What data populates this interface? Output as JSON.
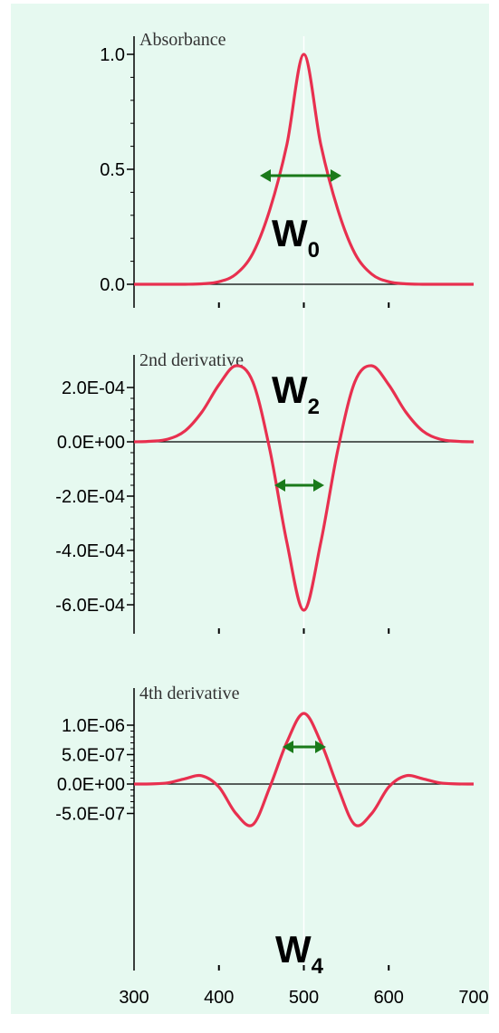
{
  "colors": {
    "background": "#e6f9f0",
    "curve": "#e8304f",
    "arrow": "#1a7a1a",
    "axis": "#000000",
    "center_line": "#ffffff"
  },
  "x_axis": {
    "ticks": [
      300,
      400,
      500,
      600,
      700
    ],
    "tick_labels": [
      "300",
      "400",
      "500",
      "600",
      "700"
    ]
  },
  "chart_data": [
    {
      "type": "line",
      "title": "Absorbance",
      "x": [
        300,
        320,
        340,
        360,
        380,
        400,
        420,
        440,
        460,
        480,
        500,
        520,
        540,
        560,
        580,
        600,
        620,
        640,
        660,
        680,
        700
      ],
      "values": [
        0,
        0,
        0,
        0.0001,
        0.002,
        0.011,
        0.044,
        0.135,
        0.325,
        0.607,
        1.0,
        0.607,
        0.325,
        0.135,
        0.044,
        0.011,
        0.002,
        0.0001,
        0,
        0,
        0
      ],
      "ylim": [
        0,
        1.0
      ],
      "y_ticks": [
        0.0,
        0.5,
        1.0
      ],
      "y_tick_labels": [
        "0.0",
        "0.5",
        "1.0"
      ],
      "width_label": {
        "main": "W",
        "sub": "0"
      }
    },
    {
      "type": "line",
      "title": "2nd derivative",
      "x": [
        300,
        320,
        340,
        360,
        380,
        400,
        420,
        440,
        460,
        480,
        500,
        520,
        540,
        560,
        580,
        600,
        620,
        640,
        660,
        680,
        700
      ],
      "values": [
        0,
        2e-06,
        1e-05,
        4e-05,
        0.00011,
        0.00021,
        0.00028,
        0.00022,
        -3e-05,
        -0.00037,
        -0.00062,
        -0.00037,
        -3e-05,
        0.00022,
        0.00028,
        0.00021,
        0.00011,
        4e-05,
        1e-05,
        2e-06,
        0
      ],
      "ylim": [
        -0.0006,
        0.0002
      ],
      "y_ticks": [
        0.0002,
        0.0,
        -0.0002,
        -0.0004,
        -0.0006
      ],
      "y_tick_labels": [
        "2.0E-04",
        "0.0E+00",
        "-2.0E-04",
        "-4.0E-04",
        "-6.0E-04"
      ],
      "width_label": {
        "main": "W",
        "sub": "2"
      }
    },
    {
      "type": "line",
      "title": "4th derivative",
      "x": [
        300,
        320,
        340,
        360,
        380,
        400,
        420,
        440,
        460,
        480,
        500,
        520,
        540,
        560,
        580,
        600,
        620,
        640,
        660,
        680,
        700
      ],
      "values": [
        0,
        2e-09,
        2e-08,
        9e-08,
        1.4e-07,
        -5e-08,
        -5e-07,
        -6.9e-07,
        -5e-08,
        7.1e-07,
        1.2e-06,
        7.1e-07,
        -5e-08,
        -6.9e-07,
        -5e-07,
        -5e-08,
        1.4e-07,
        9e-08,
        2e-08,
        2e-09,
        0
      ],
      "ylim": [
        -5e-07,
        1e-06
      ],
      "y_ticks": [
        1e-06,
        5e-07,
        0.0,
        -5e-07
      ],
      "y_tick_labels": [
        "1.0E-06",
        "5.0E-07",
        "0.0E+00",
        "-5.0E-07"
      ],
      "width_label": {
        "main": "W",
        "sub": "4"
      }
    }
  ]
}
